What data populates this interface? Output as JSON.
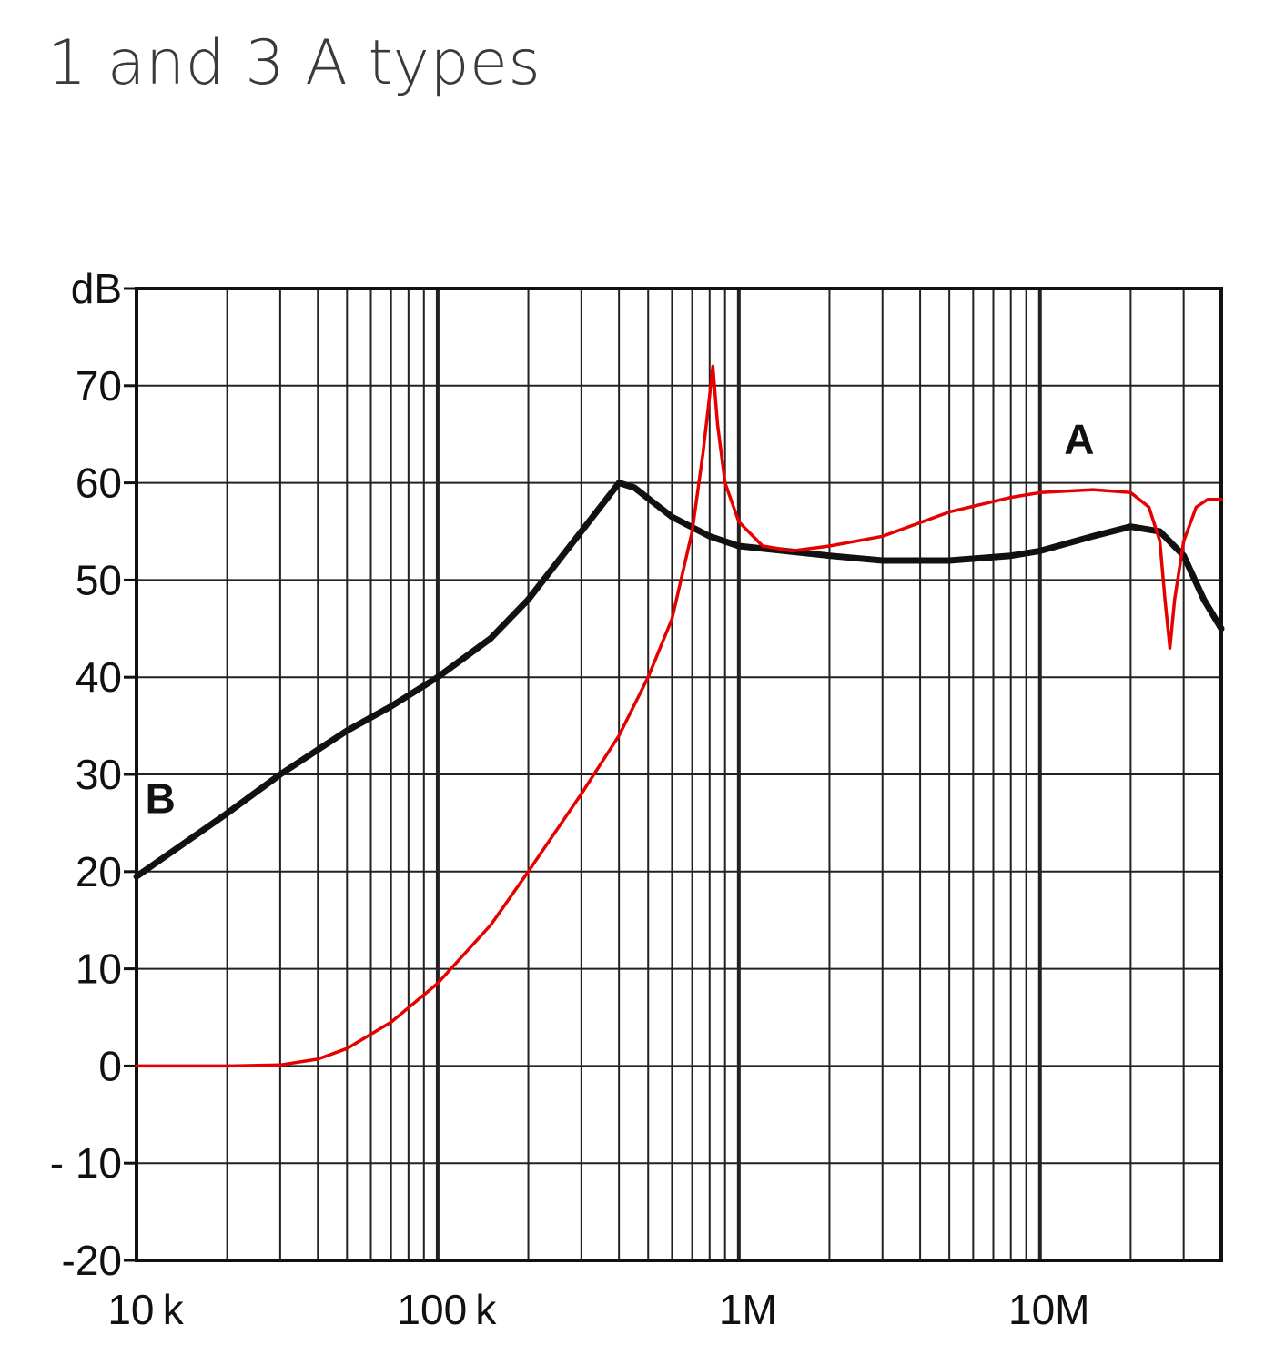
{
  "chart_data": {
    "type": "line",
    "title": "1 and 3 A types",
    "ylabel": "dB",
    "xscale": "log",
    "xlim": [
      10000,
      40000000
    ],
    "ylim": [
      -20,
      80
    ],
    "x_tick_labels": [
      {
        "value": 10000,
        "label": "10 k"
      },
      {
        "value": 100000,
        "label": "100 k"
      },
      {
        "value": 1000000,
        "label": "1M"
      },
      {
        "value": 10000000,
        "label": "10M"
      }
    ],
    "y_ticks": [
      -20,
      -10,
      0,
      10,
      20,
      30,
      40,
      50,
      60,
      70
    ],
    "y_tick_labels": [
      "-20",
      "- 10",
      "0",
      "10",
      "20",
      "30",
      "40",
      "50",
      "60",
      "70"
    ],
    "grid": true,
    "series": [
      {
        "name": "A",
        "color": "#e60000",
        "points": [
          [
            10000,
            0
          ],
          [
            20000,
            0
          ],
          [
            30000,
            0.1
          ],
          [
            40000,
            0.7
          ],
          [
            50000,
            1.8
          ],
          [
            70000,
            4.5
          ],
          [
            100000,
            8.5
          ],
          [
            150000,
            14.5
          ],
          [
            200000,
            20
          ],
          [
            300000,
            28
          ],
          [
            400000,
            34
          ],
          [
            500000,
            40
          ],
          [
            600000,
            46
          ],
          [
            700000,
            55
          ],
          [
            760000,
            63
          ],
          [
            800000,
            69
          ],
          [
            820000,
            72
          ],
          [
            850000,
            66
          ],
          [
            900000,
            60
          ],
          [
            1000000,
            56
          ],
          [
            1200000,
            53.5
          ],
          [
            1500000,
            53
          ],
          [
            2000000,
            53.5
          ],
          [
            3000000,
            54.5
          ],
          [
            5000000,
            57
          ],
          [
            8000000,
            58.5
          ],
          [
            10000000,
            59
          ],
          [
            15000000,
            59.3
          ],
          [
            20000000,
            59
          ],
          [
            23000000,
            57.5
          ],
          [
            25000000,
            54
          ],
          [
            26000000,
            48
          ],
          [
            27000000,
            43
          ],
          [
            28000000,
            48
          ],
          [
            30000000,
            54
          ],
          [
            33000000,
            57.5
          ],
          [
            36000000,
            58.3
          ],
          [
            40000000,
            58.3
          ]
        ]
      },
      {
        "name": "B",
        "color": "#111111",
        "points": [
          [
            10000,
            19.5
          ],
          [
            20000,
            26
          ],
          [
            30000,
            30
          ],
          [
            50000,
            34.5
          ],
          [
            70000,
            37
          ],
          [
            100000,
            40
          ],
          [
            150000,
            44
          ],
          [
            200000,
            48
          ],
          [
            300000,
            55
          ],
          [
            400000,
            60
          ],
          [
            450000,
            59.5
          ],
          [
            600000,
            56.5
          ],
          [
            800000,
            54.5
          ],
          [
            1000000,
            53.5
          ],
          [
            2000000,
            52.5
          ],
          [
            3000000,
            52
          ],
          [
            5000000,
            52
          ],
          [
            8000000,
            52.5
          ],
          [
            10000000,
            53
          ],
          [
            15000000,
            54.5
          ],
          [
            20000000,
            55.5
          ],
          [
            25000000,
            55
          ],
          [
            30000000,
            52.5
          ],
          [
            35000000,
            48
          ],
          [
            40000000,
            45
          ]
        ]
      }
    ],
    "annotations": [
      {
        "text": "A",
        "x": 13500000,
        "y": 63
      },
      {
        "text": "B",
        "x": 12000,
        "y": 26
      }
    ]
  }
}
